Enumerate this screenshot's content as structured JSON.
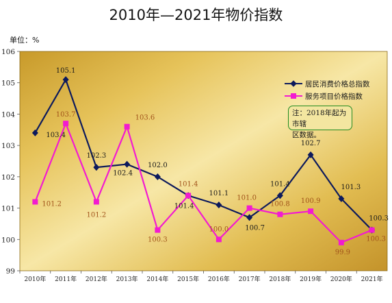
{
  "chart_data": {
    "type": "line",
    "title": "2010年—2021年物价指数",
    "unit_label": "单位：%",
    "categories": [
      "2010年",
      "2011年",
      "2012年",
      "2013年",
      "2014年",
      "2015年",
      "2016年",
      "2017年",
      "2018年",
      "2019年",
      "2020年",
      "2021年"
    ],
    "ylim": [
      99,
      106
    ],
    "yticks": [
      "99",
      "100",
      "101",
      "102",
      "103",
      "104",
      "105",
      "106"
    ],
    "series": [
      {
        "name": "居民消费价格总指数",
        "color": "#0d1a5c",
        "marker": "diamond",
        "values": [
          103.4,
          105.1,
          102.3,
          102.4,
          102.0,
          101.4,
          101.1,
          100.7,
          101.4,
          102.7,
          101.3,
          100.3
        ],
        "labels": [
          "103.4",
          "105.1",
          "102.3",
          "102.4",
          "102.0",
          "101.4",
          "101.1",
          "100.7",
          "101.4",
          "102.7",
          "101.3",
          "100.3"
        ]
      },
      {
        "name": "服务项目价格指数",
        "color": "#f21bd0",
        "marker": "square",
        "values": [
          101.2,
          103.7,
          101.2,
          103.6,
          100.3,
          101.4,
          100.0,
          101.0,
          100.8,
          100.9,
          99.9,
          100.3
        ],
        "labels": [
          "101.2",
          "103.7",
          "101.2",
          "103.6",
          "100.3",
          "101.4",
          "100.0",
          "101.0",
          "100.8",
          "100.9",
          "99.9",
          "100.3"
        ]
      }
    ],
    "annotation": "注：2018年起为市辖区数据。",
    "annotation_lines": [
      "注：2018年起为市辖",
      "区数据。"
    ],
    "legend_position": "top-right",
    "grid": false
  }
}
